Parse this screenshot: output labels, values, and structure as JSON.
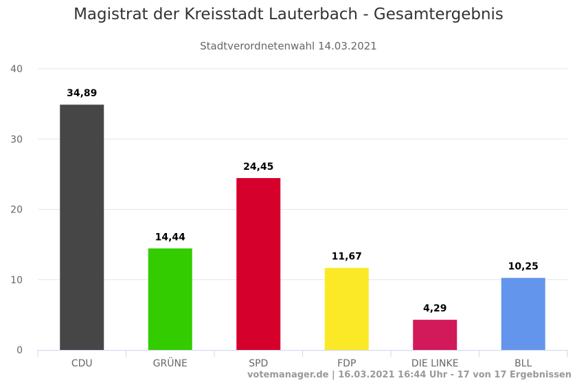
{
  "chart_data": {
    "type": "bar",
    "title": "Magistrat der Kreisstadt Lauterbach - Gesamtergebnis",
    "subtitle": "Stadtverordnetenwahl 14.03.2021",
    "categories": [
      "CDU",
      "GRÜNE",
      "SPD",
      "FDP",
      "DIE LINKE",
      "BLL"
    ],
    "values": [
      34.89,
      14.44,
      24.45,
      11.67,
      4.29,
      10.25
    ],
    "data_labels": [
      "34,89",
      "14,44",
      "24,45",
      "11,67",
      "4,29",
      "10,25"
    ],
    "colors": [
      "#464646",
      "#33cc00",
      "#d5002c",
      "#fbe928",
      "#d2195a",
      "#6495ed"
    ],
    "y_ticks": [
      0,
      10,
      20,
      30,
      40
    ],
    "ylim": [
      0,
      40
    ],
    "grid": true,
    "legend": "none"
  },
  "credits": "votemanager.de | 16.03.2021 16:44 Uhr - 17 von 17 Ergebnissen"
}
